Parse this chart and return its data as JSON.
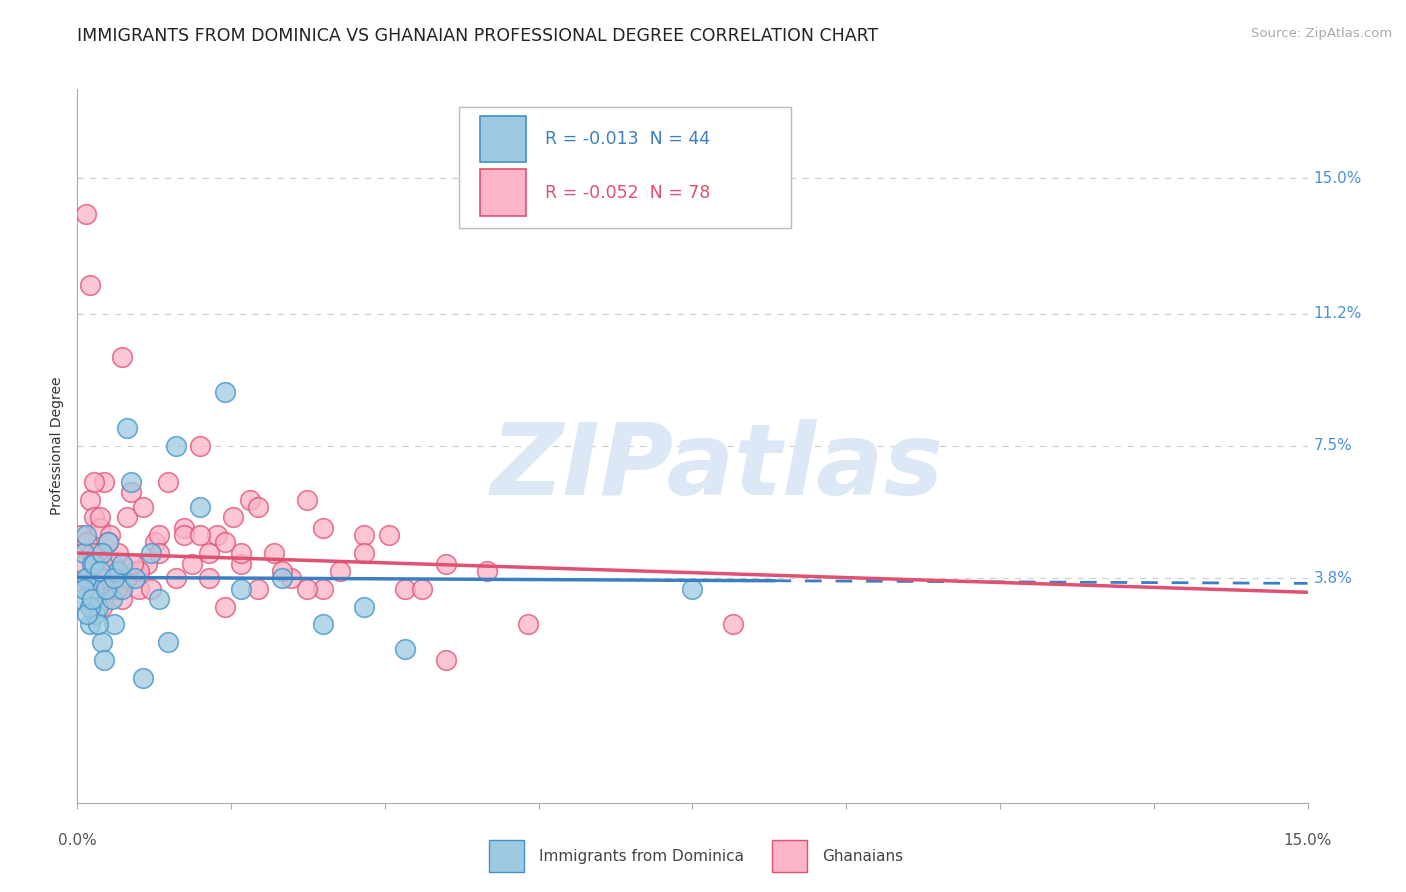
{
  "title": "IMMIGRANTS FROM DOMINICA VS GHANAIAN PROFESSIONAL DEGREE CORRELATION CHART",
  "source": "Source: ZipAtlas.com",
  "ylabel": "Professional Degree",
  "x_min": 0.0,
  "x_max": 15.0,
  "y_min": -2.5,
  "y_max": 17.5,
  "yticks": [
    3.8,
    7.5,
    11.2,
    15.0
  ],
  "ytick_labels": [
    "3.8%",
    "7.5%",
    "11.2%",
    "15.0%"
  ],
  "color_blue": "#9ecae1",
  "color_pink": "#fbb4c8",
  "color_blue_edge": "#4292c6",
  "color_pink_edge": "#e05070",
  "color_blue_line": "#3a7fc1",
  "color_pink_line": "#e05070",
  "watermark_text": "ZIPatlas",
  "watermark_color": "#dce8f5",
  "grid_color": "#d0d0d0",
  "title_fontsize": 12.5,
  "tick_fontsize": 11,
  "ylabel_fontsize": 10,
  "blue_line_x0": 0.0,
  "blue_line_x1": 15.0,
  "blue_line_y0": 3.82,
  "blue_line_y1": 3.65,
  "pink_line_x0": 0.0,
  "pink_line_x1": 15.0,
  "pink_line_y0": 4.5,
  "pink_line_y1": 3.4,
  "blue_scatter_x": [
    0.05,
    0.08,
    0.1,
    0.12,
    0.15,
    0.18,
    0.2,
    0.22,
    0.25,
    0.3,
    0.33,
    0.38,
    0.42,
    0.45,
    0.5,
    0.55,
    0.6,
    0.65,
    0.7,
    0.8,
    0.9,
    1.0,
    1.1,
    1.2,
    1.5,
    1.8,
    2.0,
    2.5,
    3.0,
    3.5,
    4.0,
    7.5,
    0.1,
    0.15,
    0.2,
    0.25,
    0.3,
    0.08,
    0.12,
    0.18,
    0.28,
    0.35,
    0.45,
    0.55
  ],
  "blue_scatter_y": [
    3.2,
    4.5,
    5.0,
    3.8,
    2.5,
    4.2,
    3.5,
    2.8,
    3.0,
    2.0,
    1.5,
    4.8,
    3.2,
    2.5,
    4.0,
    3.5,
    8.0,
    6.5,
    3.8,
    1.0,
    4.5,
    3.2,
    2.0,
    7.5,
    5.8,
    9.0,
    3.5,
    3.8,
    2.5,
    3.0,
    1.8,
    3.5,
    3.8,
    3.0,
    4.2,
    2.5,
    4.5,
    3.5,
    2.8,
    3.2,
    4.0,
    3.5,
    3.8,
    4.2
  ],
  "pink_scatter_x": [
    0.05,
    0.08,
    0.1,
    0.12,
    0.15,
    0.18,
    0.2,
    0.22,
    0.25,
    0.28,
    0.3,
    0.33,
    0.35,
    0.38,
    0.4,
    0.42,
    0.45,
    0.5,
    0.55,
    0.6,
    0.65,
    0.7,
    0.75,
    0.8,
    0.85,
    0.9,
    0.95,
    1.0,
    1.1,
    1.2,
    1.3,
    1.4,
    1.5,
    1.6,
    1.7,
    1.8,
    1.9,
    2.0,
    2.1,
    2.2,
    2.4,
    2.6,
    2.8,
    3.0,
    3.2,
    3.5,
    4.0,
    4.5,
    5.5,
    0.1,
    0.15,
    0.2,
    0.25,
    0.3,
    0.18,
    0.28,
    0.38,
    0.48,
    0.6,
    0.75,
    1.0,
    1.3,
    1.6,
    2.0,
    2.5,
    3.0,
    3.8,
    4.2,
    0.55,
    1.8,
    3.5,
    5.0,
    8.0,
    2.2,
    0.68,
    1.5,
    2.8,
    4.5
  ],
  "pink_scatter_y": [
    5.0,
    4.2,
    3.5,
    4.8,
    6.0,
    3.2,
    5.5,
    3.8,
    4.5,
    5.2,
    3.0,
    6.5,
    4.0,
    3.5,
    5.0,
    4.2,
    3.8,
    4.5,
    3.2,
    5.5,
    6.2,
    4.0,
    3.5,
    5.8,
    4.2,
    3.5,
    4.8,
    5.0,
    6.5,
    3.8,
    5.2,
    4.2,
    7.5,
    4.5,
    5.0,
    4.8,
    5.5,
    4.2,
    6.0,
    5.8,
    4.5,
    3.8,
    6.0,
    5.2,
    4.0,
    5.0,
    3.5,
    4.2,
    2.5,
    14.0,
    12.0,
    6.5,
    3.5,
    3.8,
    4.5,
    5.5,
    4.8,
    3.5,
    3.8,
    4.0,
    4.5,
    5.0,
    3.8,
    4.5,
    4.0,
    3.5,
    5.0,
    3.5,
    10.0,
    3.0,
    4.5,
    4.0,
    2.5,
    3.5,
    4.2,
    5.0,
    3.5,
    1.5
  ]
}
